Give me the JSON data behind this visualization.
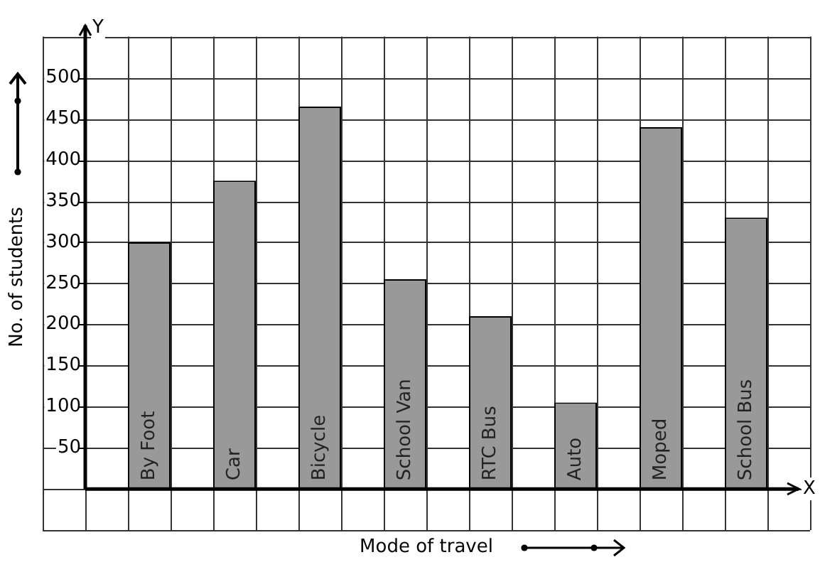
{
  "chart_data": {
    "type": "bar",
    "xlabel": "Mode of travel",
    "ylabel": "No. of students",
    "categories": [
      "By Foot",
      "Car",
      "Bicycle",
      "School Van",
      "RTC Bus",
      "Auto",
      "Moped",
      "School Bus"
    ],
    "values": [
      300,
      375,
      465,
      255,
      210,
      105,
      440,
      330
    ],
    "color": "#999999",
    "ylim": [
      -50,
      550
    ],
    "yticks": [
      {
        "value": -50,
        "label": null
      },
      {
        "value": 0,
        "label": null
      },
      50,
      100,
      150,
      200,
      250,
      300,
      350,
      400,
      450,
      500,
      {
        "value": 550,
        "label": null
      }
    ],
    "grid": true,
    "legend": false,
    "annotations": [
      "Y",
      "X"
    ]
  }
}
